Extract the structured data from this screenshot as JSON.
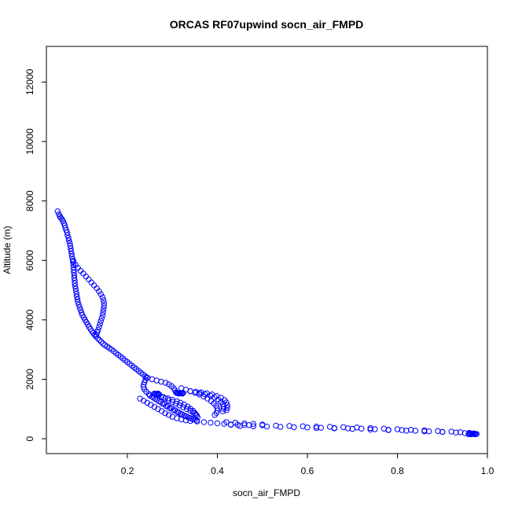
{
  "chart_data": {
    "type": "scatter",
    "title": "ORCAS RF07upwind socn_air_FMPD",
    "xlabel": "socn_air_FMPD",
    "ylabel": "Altitude (m)",
    "xlim": [
      0.02,
      1.0
    ],
    "ylim": [
      -500,
      13200
    ],
    "xticks": [
      0.2,
      0.4,
      0.6,
      0.8,
      1.0
    ],
    "xtick_labels": [
      "0.2",
      "0.4",
      "0.6",
      "0.8",
      "1.0"
    ],
    "yticks": [
      0,
      2000,
      4000,
      6000,
      8000,
      10000,
      12000
    ],
    "ytick_labels": [
      "0",
      "2000",
      "4000",
      "6000",
      "8000",
      "10000",
      "12000"
    ],
    "grid": false,
    "marker": "open-circle",
    "color": "#0000ff",
    "series": [
      {
        "points": [
          [
            0.045,
            7650
          ],
          [
            0.048,
            7550
          ],
          [
            0.05,
            7480
          ],
          [
            0.052,
            7430
          ],
          [
            0.055,
            7380
          ],
          [
            0.057,
            7320
          ],
          [
            0.059,
            7250
          ],
          [
            0.061,
            7180
          ],
          [
            0.062,
            7100
          ],
          [
            0.064,
            7020
          ],
          [
            0.066,
            6940
          ],
          [
            0.067,
            6850
          ],
          [
            0.069,
            6760
          ],
          [
            0.07,
            6670
          ],
          [
            0.072,
            6580
          ],
          [
            0.073,
            6490
          ],
          [
            0.074,
            6400
          ],
          [
            0.075,
            6310
          ],
          [
            0.076,
            6220
          ],
          [
            0.077,
            6130
          ],
          [
            0.078,
            6040
          ],
          [
            0.079,
            5950
          ],
          [
            0.08,
            5860
          ],
          [
            0.08,
            5770
          ],
          [
            0.081,
            5680
          ],
          [
            0.081,
            5590
          ],
          [
            0.082,
            5500
          ],
          [
            0.082,
            5410
          ],
          [
            0.083,
            5320
          ],
          [
            0.083,
            5230
          ],
          [
            0.084,
            5140
          ],
          [
            0.085,
            5050
          ],
          [
            0.086,
            4960
          ],
          [
            0.087,
            4870
          ],
          [
            0.088,
            4780
          ],
          [
            0.089,
            4690
          ],
          [
            0.09,
            4600
          ],
          [
            0.092,
            4510
          ],
          [
            0.094,
            4420
          ],
          [
            0.096,
            4330
          ],
          [
            0.098,
            4240
          ],
          [
            0.1,
            4160
          ],
          [
            0.103,
            4080
          ],
          [
            0.106,
            4000
          ],
          [
            0.109,
            3920
          ],
          [
            0.112,
            3840
          ],
          [
            0.115,
            3760
          ],
          [
            0.118,
            3690
          ],
          [
            0.121,
            3620
          ],
          [
            0.124,
            3560
          ],
          [
            0.127,
            3500
          ],
          [
            0.13,
            3440
          ],
          [
            0.134,
            3380
          ],
          [
            0.138,
            3320
          ],
          [
            0.142,
            3260
          ],
          [
            0.146,
            3200
          ],
          [
            0.15,
            3150
          ],
          [
            0.155,
            3100
          ],
          [
            0.16,
            3050
          ],
          [
            0.08,
            5980
          ],
          [
            0.085,
            5850
          ],
          [
            0.09,
            5750
          ],
          [
            0.096,
            5650
          ],
          [
            0.102,
            5560
          ],
          [
            0.108,
            5460
          ],
          [
            0.114,
            5360
          ],
          [
            0.12,
            5260
          ],
          [
            0.126,
            5160
          ],
          [
            0.132,
            5060
          ],
          [
            0.137,
            4960
          ],
          [
            0.141,
            4860
          ],
          [
            0.145,
            4760
          ],
          [
            0.147,
            4660
          ],
          [
            0.148,
            4560
          ],
          [
            0.148,
            4460
          ],
          [
            0.147,
            4360
          ],
          [
            0.146,
            4260
          ],
          [
            0.145,
            4160
          ],
          [
            0.143,
            4060
          ],
          [
            0.141,
            3960
          ],
          [
            0.139,
            3860
          ],
          [
            0.137,
            3760
          ],
          [
            0.135,
            3660
          ],
          [
            0.133,
            3580
          ],
          [
            0.131,
            3500
          ],
          [
            0.165,
            3000
          ],
          [
            0.17,
            2940
          ],
          [
            0.175,
            2880
          ],
          [
            0.18,
            2820
          ],
          [
            0.185,
            2760
          ],
          [
            0.19,
            2700
          ],
          [
            0.195,
            2640
          ],
          [
            0.2,
            2580
          ],
          [
            0.205,
            2520
          ],
          [
            0.21,
            2460
          ],
          [
            0.215,
            2400
          ],
          [
            0.22,
            2340
          ],
          [
            0.225,
            2280
          ],
          [
            0.23,
            2220
          ],
          [
            0.235,
            2160
          ],
          [
            0.24,
            2100
          ],
          [
            0.242,
            2060
          ],
          [
            0.24,
            1980
          ],
          [
            0.238,
            1900
          ],
          [
            0.236,
            1820
          ],
          [
            0.236,
            1740
          ],
          [
            0.238,
            1660
          ],
          [
            0.242,
            1580
          ],
          [
            0.248,
            1500
          ],
          [
            0.255,
            1420
          ],
          [
            0.262,
            1340
          ],
          [
            0.27,
            1260
          ],
          [
            0.278,
            1180
          ],
          [
            0.286,
            1100
          ],
          [
            0.294,
            1030
          ],
          [
            0.302,
            960
          ],
          [
            0.31,
            900
          ],
          [
            0.318,
            840
          ],
          [
            0.326,
            780
          ],
          [
            0.334,
            730
          ],
          [
            0.342,
            680
          ],
          [
            0.35,
            640
          ],
          [
            0.245,
            2050
          ],
          [
            0.255,
            2000
          ],
          [
            0.265,
            1960
          ],
          [
            0.275,
            1920
          ],
          [
            0.285,
            1880
          ],
          [
            0.292,
            1830
          ],
          [
            0.298,
            1770
          ],
          [
            0.303,
            1700
          ],
          [
            0.306,
            1630
          ],
          [
            0.308,
            1560
          ],
          [
            0.26,
            1520
          ],
          [
            0.262,
            1510
          ],
          [
            0.264,
            1500
          ],
          [
            0.266,
            1510
          ],
          [
            0.268,
            1520
          ],
          [
            0.27,
            1500
          ],
          [
            0.27,
            1490
          ],
          [
            0.268,
            1510
          ],
          [
            0.31,
            1540
          ],
          [
            0.312,
            1530
          ],
          [
            0.314,
            1520
          ],
          [
            0.316,
            1530
          ],
          [
            0.318,
            1540
          ],
          [
            0.32,
            1530
          ],
          [
            0.322,
            1520
          ],
          [
            0.324,
            1540
          ],
          [
            0.25,
            1450
          ],
          [
            0.258,
            1380
          ],
          [
            0.266,
            1310
          ],
          [
            0.274,
            1240
          ],
          [
            0.282,
            1170
          ],
          [
            0.29,
            1100
          ],
          [
            0.298,
            1030
          ],
          [
            0.306,
            960
          ],
          [
            0.314,
            890
          ],
          [
            0.322,
            820
          ],
          [
            0.33,
            760
          ],
          [
            0.338,
            700
          ],
          [
            0.346,
            650
          ],
          [
            0.354,
            610
          ],
          [
            0.27,
            1480
          ],
          [
            0.276,
            1420
          ],
          [
            0.284,
            1360
          ],
          [
            0.292,
            1300
          ],
          [
            0.3,
            1240
          ],
          [
            0.308,
            1180
          ],
          [
            0.316,
            1120
          ],
          [
            0.324,
            1060
          ],
          [
            0.332,
            1000
          ],
          [
            0.34,
            940
          ],
          [
            0.346,
            880
          ],
          [
            0.352,
            820
          ],
          [
            0.28,
            1400
          ],
          [
            0.29,
            1360
          ],
          [
            0.3,
            1310
          ],
          [
            0.31,
            1260
          ],
          [
            0.318,
            1210
          ],
          [
            0.326,
            1150
          ],
          [
            0.334,
            1080
          ],
          [
            0.34,
            1010
          ],
          [
            0.346,
            940
          ],
          [
            0.35,
            860
          ],
          [
            0.354,
            790
          ],
          [
            0.356,
            720
          ],
          [
            0.32,
            1700
          ],
          [
            0.33,
            1650
          ],
          [
            0.34,
            1600
          ],
          [
            0.35,
            1550
          ],
          [
            0.36,
            1490
          ],
          [
            0.37,
            1420
          ],
          [
            0.378,
            1350
          ],
          [
            0.386,
            1270
          ],
          [
            0.392,
            1190
          ],
          [
            0.397,
            1110
          ],
          [
            0.4,
            1030
          ],
          [
            0.4,
            950
          ],
          [
            0.398,
            870
          ],
          [
            0.394,
            800
          ],
          [
            0.34,
            1600
          ],
          [
            0.352,
            1580
          ],
          [
            0.364,
            1560
          ],
          [
            0.376,
            1530
          ],
          [
            0.388,
            1490
          ],
          [
            0.398,
            1440
          ],
          [
            0.408,
            1380
          ],
          [
            0.416,
            1300
          ],
          [
            0.42,
            1220
          ],
          [
            0.422,
            1130
          ],
          [
            0.422,
            1040
          ],
          [
            0.42,
            960
          ],
          [
            0.36,
            1540
          ],
          [
            0.372,
            1500
          ],
          [
            0.384,
            1450
          ],
          [
            0.394,
            1390
          ],
          [
            0.402,
            1320
          ],
          [
            0.408,
            1240
          ],
          [
            0.412,
            1160
          ],
          [
            0.414,
            1080
          ],
          [
            0.414,
            1000
          ],
          [
            0.412,
            920
          ],
          [
            0.228,
            1350
          ],
          [
            0.236,
            1280
          ],
          [
            0.244,
            1210
          ],
          [
            0.252,
            1140
          ],
          [
            0.26,
            1070
          ],
          [
            0.268,
            1000
          ],
          [
            0.276,
            930
          ],
          [
            0.284,
            860
          ],
          [
            0.292,
            800
          ],
          [
            0.3,
            740
          ],
          [
            0.31,
            690
          ],
          [
            0.32,
            650
          ],
          [
            0.33,
            620
          ],
          [
            0.34,
            600
          ],
          [
            0.355,
            580
          ],
          [
            0.37,
            560
          ],
          [
            0.385,
            540
          ],
          [
            0.4,
            520
          ],
          [
            0.415,
            500
          ],
          [
            0.43,
            480
          ],
          [
            0.445,
            470
          ],
          [
            0.46,
            460
          ],
          [
            0.42,
            560
          ],
          [
            0.44,
            540
          ],
          [
            0.46,
            520
          ],
          [
            0.48,
            500
          ],
          [
            0.5,
            480
          ],
          [
            0.43,
            470
          ],
          [
            0.47,
            460
          ],
          [
            0.5,
            455
          ],
          [
            0.53,
            440
          ],
          [
            0.56,
            430
          ],
          [
            0.59,
            420
          ],
          [
            0.62,
            410
          ],
          [
            0.65,
            400
          ],
          [
            0.68,
            390
          ],
          [
            0.71,
            380
          ],
          [
            0.74,
            360
          ],
          [
            0.77,
            340
          ],
          [
            0.8,
            320
          ],
          [
            0.83,
            300
          ],
          [
            0.86,
            280
          ],
          [
            0.89,
            260
          ],
          [
            0.92,
            240
          ],
          [
            0.94,
            220
          ],
          [
            0.96,
            200
          ],
          [
            0.97,
            180
          ],
          [
            0.45,
            430
          ],
          [
            0.48,
            420
          ],
          [
            0.51,
            410
          ],
          [
            0.54,
            400
          ],
          [
            0.57,
            390
          ],
          [
            0.6,
            380
          ],
          [
            0.63,
            370
          ],
          [
            0.66,
            360
          ],
          [
            0.69,
            350
          ],
          [
            0.72,
            340
          ],
          [
            0.75,
            320
          ],
          [
            0.78,
            300
          ],
          [
            0.81,
            290
          ],
          [
            0.84,
            270
          ],
          [
            0.87,
            250
          ],
          [
            0.9,
            230
          ],
          [
            0.93,
            210
          ],
          [
            0.95,
            190
          ],
          [
            0.62,
            360
          ],
          [
            0.66,
            350
          ],
          [
            0.7,
            330
          ],
          [
            0.74,
            310
          ],
          [
            0.78,
            290
          ],
          [
            0.82,
            270
          ],
          [
            0.86,
            250
          ],
          [
            0.9,
            230
          ],
          [
            0.958,
            150
          ],
          [
            0.962,
            160
          ],
          [
            0.966,
            170
          ],
          [
            0.97,
            160
          ],
          [
            0.974,
            150
          ],
          [
            0.976,
            160
          ],
          [
            0.96,
            170
          ],
          [
            0.964,
            150
          ],
          [
            0.968,
            160
          ],
          [
            0.972,
            170
          ]
        ]
      }
    ]
  }
}
